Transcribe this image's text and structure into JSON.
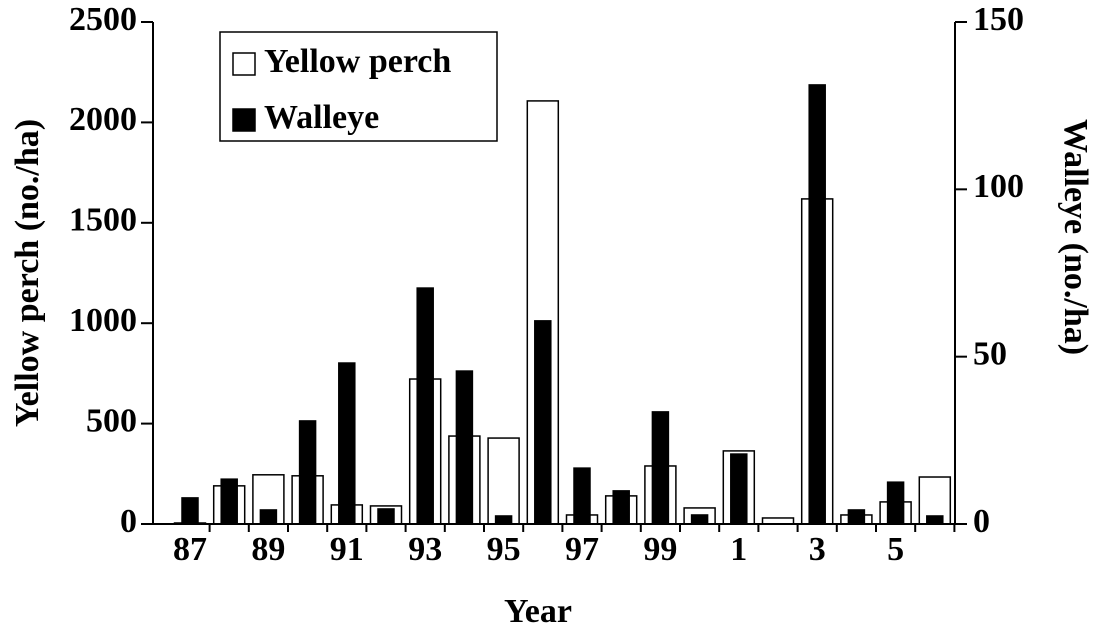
{
  "chart_data": {
    "type": "bar",
    "x_label": "Year",
    "y_label": "Yellow perch (no./ha)",
    "y2_label": "Walleye (no./ha)",
    "categories": [
      "87",
      null,
      "89",
      null,
      "91",
      null,
      "93",
      null,
      "95",
      null,
      "97",
      null,
      "99",
      null,
      "1",
      null,
      "3",
      null,
      "5",
      null
    ],
    "series": [
      {
        "name": "Yellow perch",
        "color": "#ffffff",
        "values": [
          5,
          190,
          245,
          240,
          95,
          90,
          722,
          438,
          428,
          2107,
          45,
          140,
          289,
          80,
          364,
          30,
          1619,
          45,
          110,
          234
        ]
      },
      {
        "name": "Walleye",
        "color": "#000000",
        "axis": "y2",
        "values": [
          7.8,
          13.4,
          4.2,
          30.8,
          48.1,
          4.5,
          70.5,
          45.7,
          2.4,
          60.7,
          16.7,
          9.9,
          33.5,
          2.7,
          20.9,
          0,
          131.2,
          4.2,
          12.5,
          2.4
        ]
      }
    ],
    "ylim": [
      0,
      2500
    ],
    "yticks": [
      0,
      500,
      1000,
      1500,
      2000,
      2500
    ],
    "y2lim": [
      0,
      150
    ],
    "y2ticks": [
      0,
      50,
      100,
      150
    ],
    "legend": "upper left"
  }
}
